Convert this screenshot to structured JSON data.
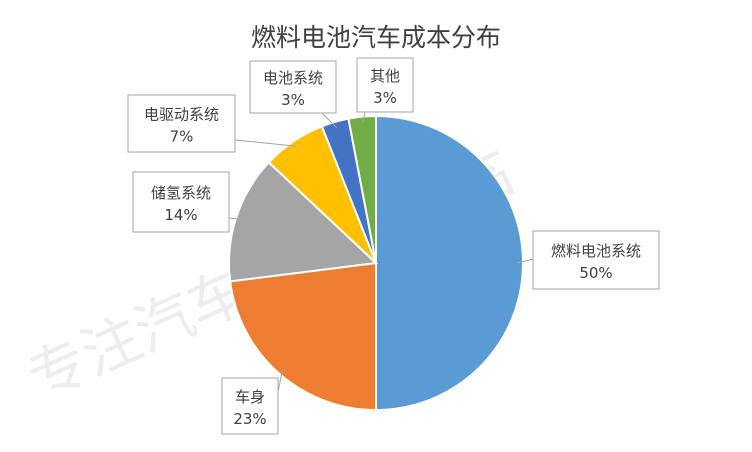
{
  "chart_data": {
    "type": "pie",
    "title": "燃料电池汽车成本分布",
    "slices": [
      {
        "label": "燃料电池系统",
        "value": 50,
        "value_label": "50%",
        "color": "#5B9BD5"
      },
      {
        "label": "车身",
        "value": 23,
        "value_label": "23%",
        "color": "#ED7D31"
      },
      {
        "label": "储氢系统",
        "value": 14,
        "value_label": "14%",
        "color": "#A5A5A5"
      },
      {
        "label": "电驱动系统",
        "value": 7,
        "value_label": "7%",
        "color": "#FFC000"
      },
      {
        "label": "电池系统",
        "value": 3,
        "value_label": "3%",
        "color": "#4472C4"
      },
      {
        "label": "其他",
        "value": 3,
        "value_label": "3%",
        "color": "#70AD47"
      }
    ],
    "start": "12 o'clock",
    "direction": "clockwise",
    "legend": "none"
  },
  "watermark": "专注汽车技术的君临"
}
